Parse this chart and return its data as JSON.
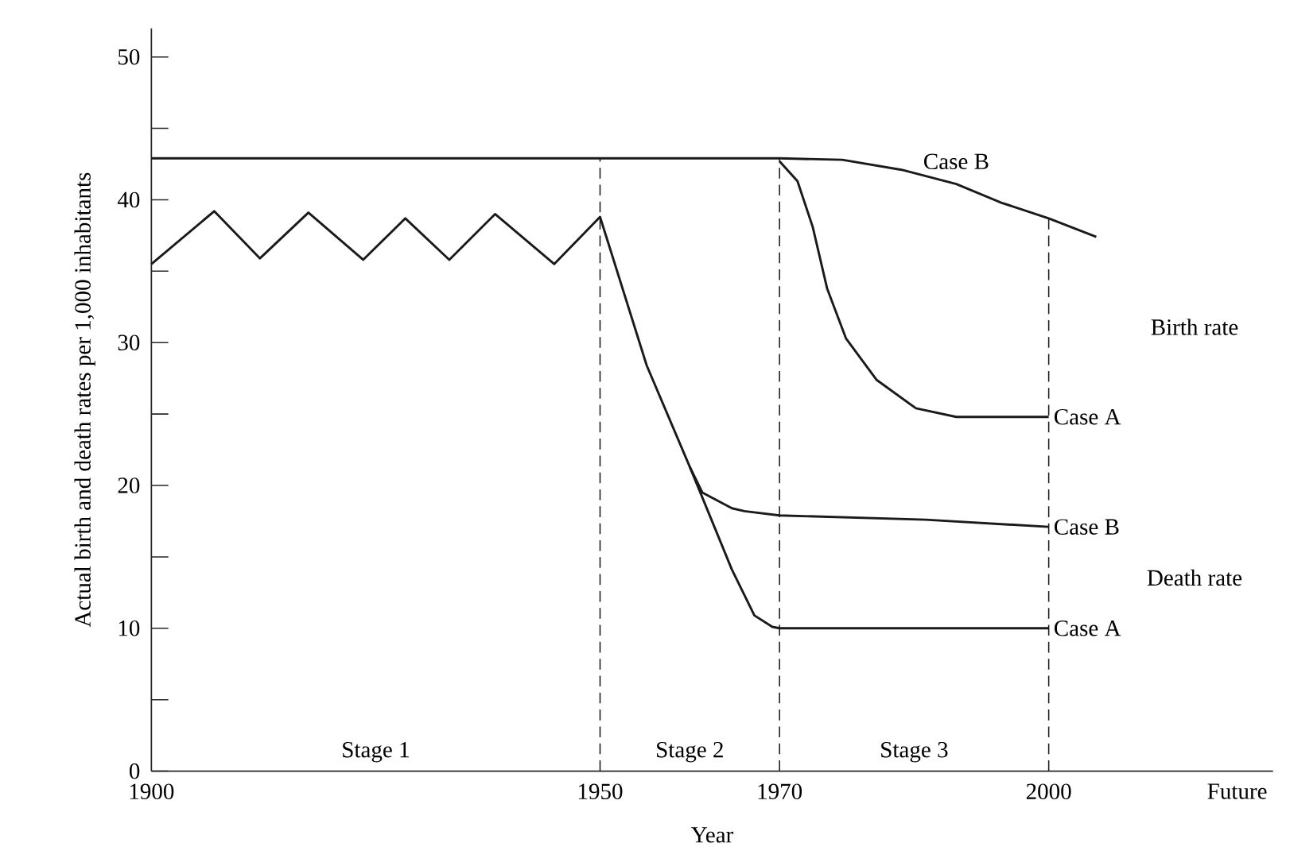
{
  "chart_data": {
    "type": "line",
    "xlabel": "Year",
    "ylabel": "Actual birth and death rates per 1,000 inhabitants",
    "xlim": [
      1900,
      2025
    ],
    "xticks": [
      1900,
      1950,
      1970,
      2000,
      {
        "value": 2021,
        "label": "Future"
      }
    ],
    "ylim": [
      0,
      52
    ],
    "yticks": [
      0,
      {
        "value": 5,
        "label": null
      },
      10,
      {
        "value": 15,
        "label": null
      },
      20,
      {
        "value": 25,
        "label": null
      },
      30,
      {
        "value": 35,
        "label": null
      },
      40,
      {
        "value": 45,
        "label": null
      },
      50
    ],
    "marker": "none",
    "line_style": "solid",
    "series": [
      {
        "name": "Case B",
        "color": "#1a1a1a",
        "x": [
          1900,
          1970,
          1977.0,
          1983.6,
          1989.7,
          1994.7,
          2000,
          2005.3
        ],
        "values": [
          42.9,
          42.9,
          42.8,
          42.1,
          41.1,
          39.8,
          38.7,
          37.4
        ]
      },
      {
        "name": "Case A",
        "color": "#1a1a1a",
        "x": [
          1970,
          1972.0,
          1973.7,
          1975.3,
          1977.4,
          1980.8,
          1985.2,
          1989.7,
          2000
        ],
        "values": [
          42.7,
          41.3,
          38.1,
          33.8,
          30.3,
          27.4,
          25.4,
          24.8,
          24.8
        ]
      },
      {
        "name": "Case B",
        "color": "#1a1a1a",
        "x": [
          1900,
          1907,
          1912.1,
          1917.5,
          1923.6,
          1928.3,
          1933.2,
          1938.3,
          1944.9,
          1950,
          1955.2,
          1960.0,
          1961.4,
          1964.7,
          1966.1,
          1970,
          1986.3,
          2000
        ],
        "values": [
          35.5,
          39.2,
          35.9,
          39.1,
          35.8,
          38.7,
          35.8,
          39.0,
          35.5,
          38.8,
          28.4,
          21.3,
          19.5,
          18.4,
          18.2,
          17.9,
          17.6,
          17.1
        ]
      },
      {
        "name": "Case A",
        "color": "#1a1a1a",
        "x": [
          1960.0,
          1964.7,
          1967.2,
          1969.2,
          1970,
          2000
        ],
        "values": [
          21.3,
          14.1,
          10.9,
          10.1,
          10.0,
          10.0
        ]
      }
    ],
    "ref_lines": [
      {
        "axis": "x",
        "value": 1950,
        "color": "#1a1a1a",
        "line_style": "dashed"
      },
      {
        "axis": "x",
        "value": 1970,
        "color": "#1a1a1a",
        "line_style": "dashed"
      },
      {
        "axis": "x",
        "value": 2000,
        "color": "#1a1a1a",
        "line_style": "dashed"
      }
    ],
    "annotations": [
      "Birth rate",
      "Death rate",
      "Stage 1",
      "Stage 2",
      "Stage 3"
    ]
  }
}
